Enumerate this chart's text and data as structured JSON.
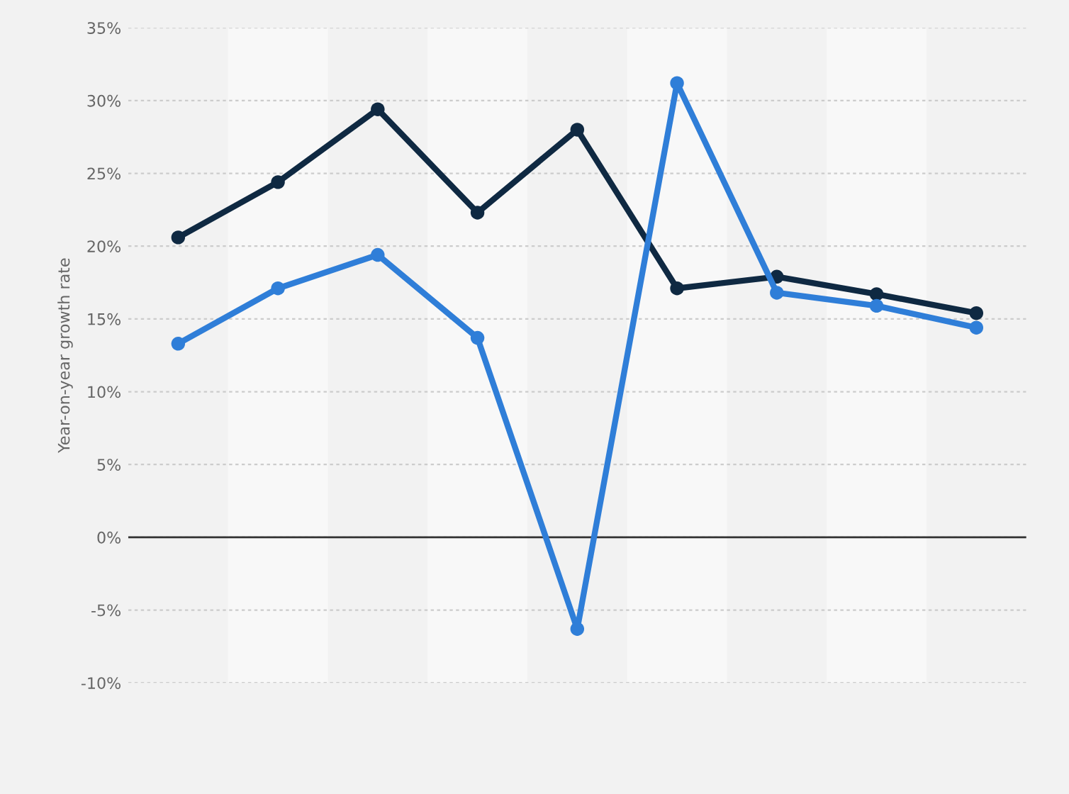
{
  "chart_data": {
    "type": "line",
    "ylabel": "Year-on-year growth rate",
    "categories": [
      null,
      null,
      null,
      null,
      null,
      null,
      null,
      null,
      null
    ],
    "series": [
      {
        "color": "#0f2942",
        "values": [
          20.6,
          24.4,
          29.4,
          22.3,
          28.0,
          17.1,
          17.9,
          16.7,
          15.4
        ]
      },
      {
        "color": "#2f7ed8",
        "values": [
          13.3,
          17.1,
          19.4,
          13.7,
          -6.3,
          31.2,
          16.8,
          15.9,
          14.4
        ]
      }
    ],
    "ylim": [
      -10,
      35
    ],
    "yticks": [
      {
        "value": -10,
        "label": "-10%"
      },
      {
        "value": -5,
        "label": "-5%"
      },
      {
        "value": 0,
        "label": "0%"
      },
      {
        "value": 5,
        "label": "5%"
      },
      {
        "value": 10,
        "label": "10%"
      },
      {
        "value": 15,
        "label": "15%"
      },
      {
        "value": 20,
        "label": "20%"
      },
      {
        "value": 25,
        "label": "25%"
      },
      {
        "value": 30,
        "label": "30%"
      },
      {
        "value": 35,
        "label": "35%"
      }
    ],
    "ref_lines": [
      {
        "axis": "y",
        "value": 0,
        "color": "#333333"
      }
    ],
    "grid": "y",
    "marker": "circle",
    "line_style": "solid",
    "legend": false
  }
}
